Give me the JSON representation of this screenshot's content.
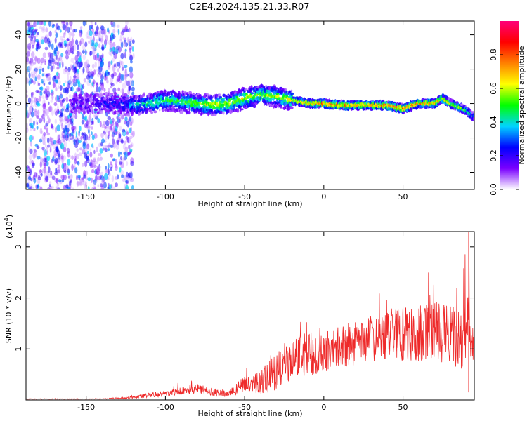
{
  "title": "C2E4.2024.135.21.33.R07",
  "chart_data": [
    {
      "type": "heatmap",
      "xlabel": "Height of straight line (km)",
      "ylabel": "Frequency (Hz)",
      "xlim": [
        -188,
        95
      ],
      "ylim": [
        -50,
        48
      ],
      "xticks": [
        -150,
        -100,
        -50,
        0,
        50
      ],
      "yticks": [
        -40,
        -20,
        0,
        20,
        40
      ],
      "colorbar": {
        "label": "Normalized spectral amplitude",
        "range": [
          0,
          1
        ],
        "ticks": [
          0.0,
          0.2,
          0.4,
          0.6,
          0.8
        ],
        "colormap": [
          "#ffffff",
          "#7a00ff",
          "#0000ff",
          "#00d4ff",
          "#00ff00",
          "#ffff00",
          "#ff8000",
          "#ff0000",
          "#ff007a"
        ]
      },
      "ridge": {
        "x": [
          -150,
          -130,
          -120,
          -110,
          -100,
          -90,
          -80,
          -70,
          -60,
          -50,
          -40,
          -30,
          -20,
          -10,
          0,
          10,
          20,
          30,
          40,
          50,
          60,
          70,
          75,
          80,
          85,
          90,
          95
        ],
        "frequency": [
          0,
          0,
          -1,
          0,
          2,
          1,
          0,
          -1,
          0,
          3,
          5,
          4,
          2,
          0,
          0,
          -1,
          -1,
          -1,
          -1,
          -3,
          0,
          0,
          3,
          0,
          -2,
          -4,
          -8
        ],
        "amplitude": [
          0.15,
          0.2,
          0.35,
          0.45,
          0.45,
          0.5,
          0.55,
          0.6,
          0.6,
          0.6,
          0.55,
          0.55,
          0.6,
          0.75,
          0.8,
          0.8,
          0.8,
          0.75,
          0.8,
          0.9,
          0.8,
          0.75,
          0.7,
          0.65,
          0.6,
          0.5,
          0.3
        ],
        "noise_region_x": [
          -188,
          -120
        ]
      }
    },
    {
      "type": "line",
      "xlabel": "Height of straight line (km)",
      "ylabel": "SNR (10 * v/v)",
      "y_multiplier": "(x10",
      "y_multiplier_exp": "4",
      "y_multiplier_close": ")",
      "xlim": [
        -188,
        95
      ],
      "ylim": [
        0,
        3.3
      ],
      "xticks": [
        -150,
        -100,
        -50,
        0,
        50
      ],
      "yticks": [
        1,
        2,
        3
      ],
      "color": "#ee2a2a",
      "envelope": {
        "x": [
          -188,
          -140,
          -120,
          -110,
          -100,
          -90,
          -80,
          -70,
          -60,
          -55,
          -50,
          -45,
          -40,
          -30,
          -25,
          -20,
          -15,
          -10,
          -5,
          0,
          10,
          20,
          30,
          40,
          50,
          60,
          70,
          80,
          88,
          91,
          93,
          95
        ],
        "y": [
          0.02,
          0.02,
          0.05,
          0.1,
          0.12,
          0.18,
          0.22,
          0.15,
          0.12,
          0.22,
          0.3,
          0.3,
          0.35,
          0.55,
          0.7,
          0.8,
          0.9,
          0.9,
          0.9,
          0.95,
          1.05,
          1.1,
          1.2,
          1.3,
          1.25,
          1.3,
          1.35,
          1.25,
          1.2,
          2.0,
          1.1,
          1.0
        ],
        "amplitude": [
          0.005,
          0.005,
          0.03,
          0.05,
          0.06,
          0.08,
          0.1,
          0.08,
          0.06,
          0.12,
          0.15,
          0.2,
          0.25,
          0.35,
          0.4,
          0.4,
          0.45,
          0.45,
          0.4,
          0.4,
          0.4,
          0.45,
          0.45,
          0.5,
          0.55,
          0.55,
          0.6,
          0.6,
          0.6,
          1.1,
          0.5,
          0.5
        ]
      }
    }
  ]
}
